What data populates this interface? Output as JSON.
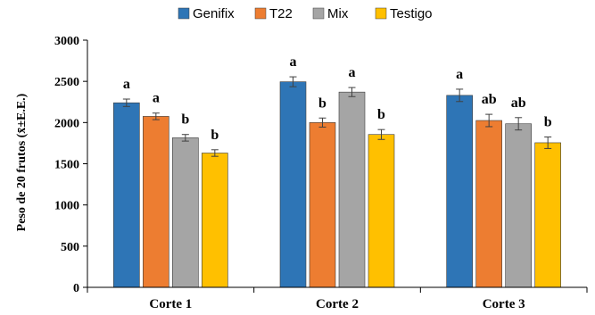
{
  "chart_data": {
    "type": "bar",
    "ylabel": "Peso de 20 frutos (x̄±E.E.)",
    "ylim": [
      0,
      3000
    ],
    "yticks": [
      0,
      500,
      1000,
      1500,
      2000,
      2500,
      3000
    ],
    "grid": false,
    "legend_position": "top",
    "categories": [
      "Corte 1",
      "Corte 2",
      "Corte 3"
    ],
    "series": [
      {
        "name": "Genifix",
        "color": "#2e75b6",
        "values": [
          2240,
          2495,
          2330
        ],
        "errors": [
          45,
          60,
          75
        ],
        "labels": [
          "a",
          "a",
          "a"
        ]
      },
      {
        "name": "T22",
        "color": "#ed7d31",
        "values": [
          2075,
          2000,
          2025
        ],
        "errors": [
          40,
          55,
          75
        ],
        "labels": [
          "a",
          "b",
          "ab"
        ]
      },
      {
        "name": "Mix",
        "color": "#a5a5a5",
        "values": [
          1815,
          2370,
          1985
        ],
        "errors": [
          40,
          55,
          75
        ],
        "labels": [
          "b",
          "a",
          "ab"
        ]
      },
      {
        "name": "Testigo",
        "color": "#ffc000",
        "values": [
          1630,
          1855,
          1755
        ],
        "errors": [
          40,
          60,
          70
        ],
        "labels": [
          "b",
          "b",
          "b"
        ]
      }
    ]
  }
}
